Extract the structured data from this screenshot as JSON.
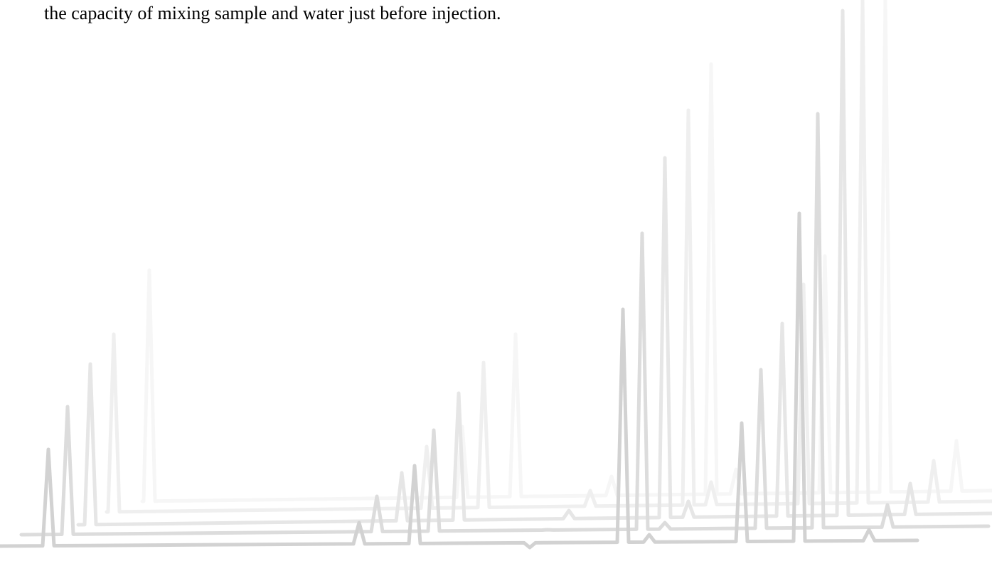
{
  "body": {
    "text": "the capacity of mixing sample and water just before injection."
  }
}
